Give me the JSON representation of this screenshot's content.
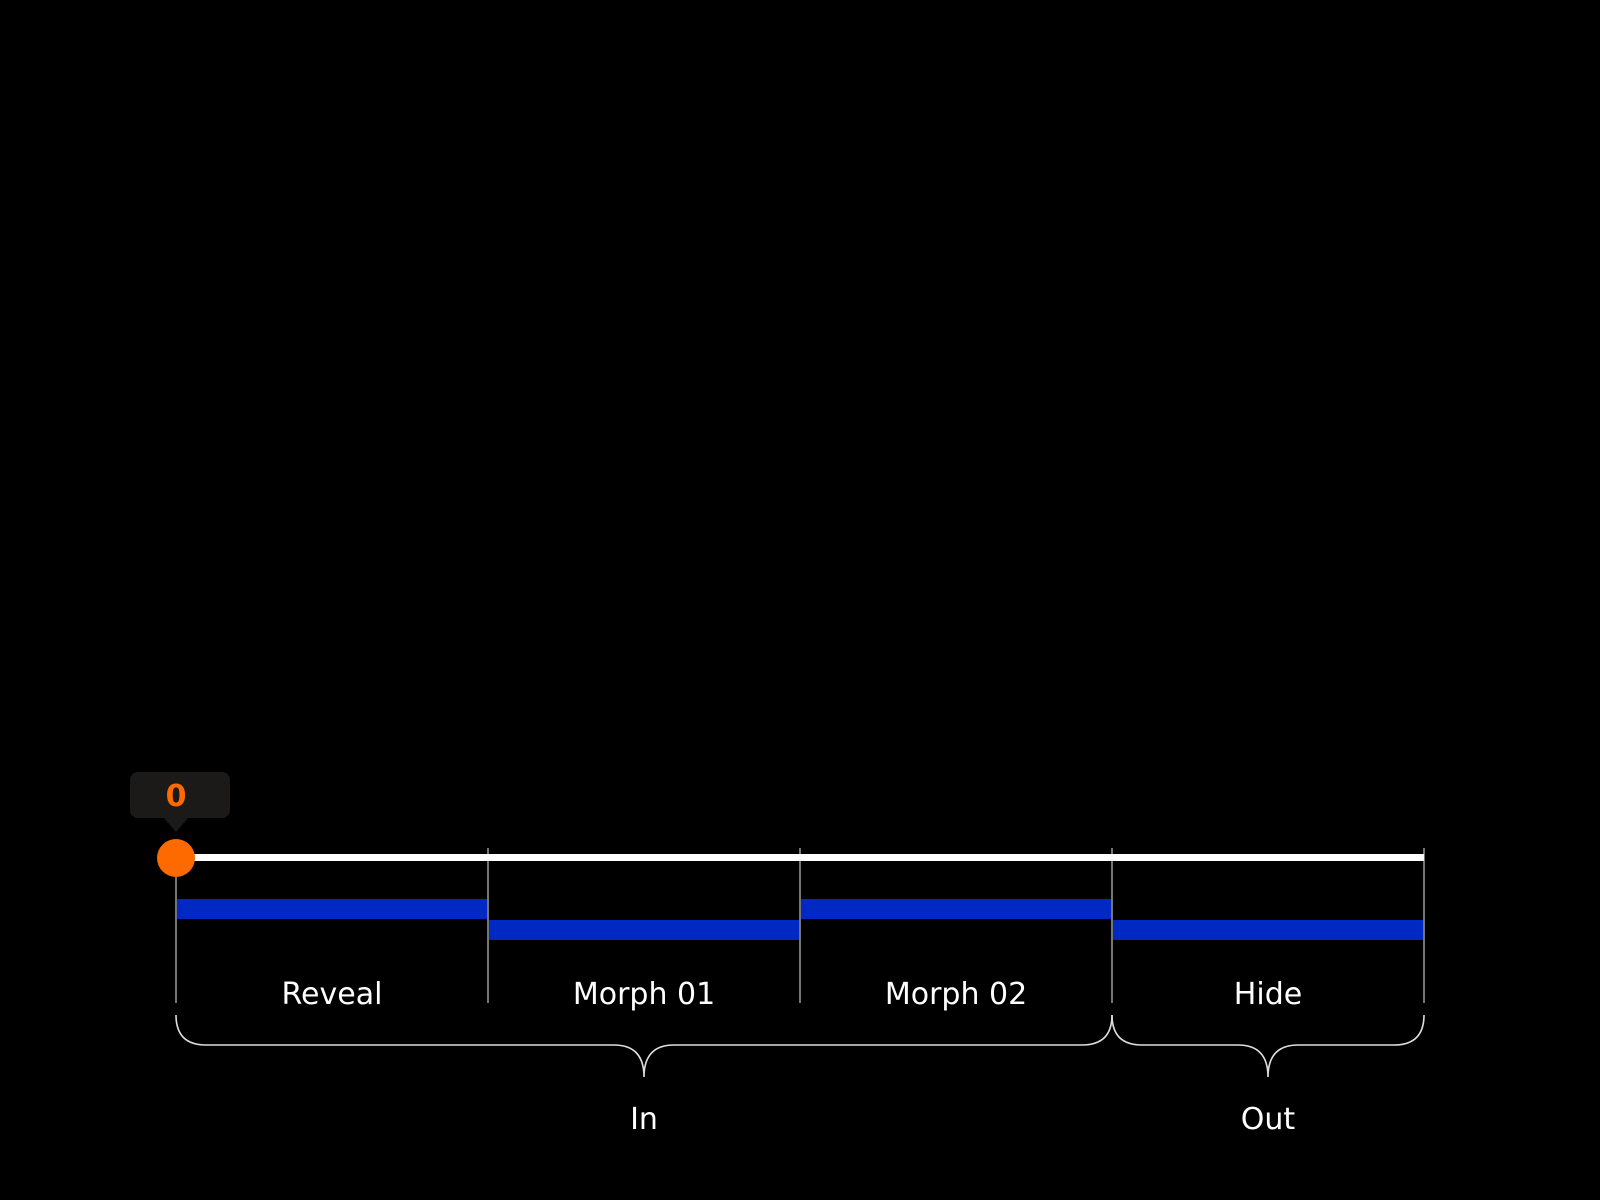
{
  "playhead": {
    "value": "0",
    "position": 0
  },
  "colors": {
    "accent": "#ff6a00",
    "segment": "#0029c4",
    "track": "#ffffff",
    "tooltip_bg": "#1c1a19",
    "divider": "#9a9a9a"
  },
  "segments": [
    {
      "label": "Reveal",
      "row": 0
    },
    {
      "label": "Morph 01",
      "row": 1
    },
    {
      "label": "Morph 02",
      "row": 0
    },
    {
      "label": "Hide",
      "row": 1
    }
  ],
  "groups": [
    {
      "label": "In",
      "from": 0,
      "to": 3
    },
    {
      "label": "Out",
      "from": 3,
      "to": 4
    }
  ]
}
